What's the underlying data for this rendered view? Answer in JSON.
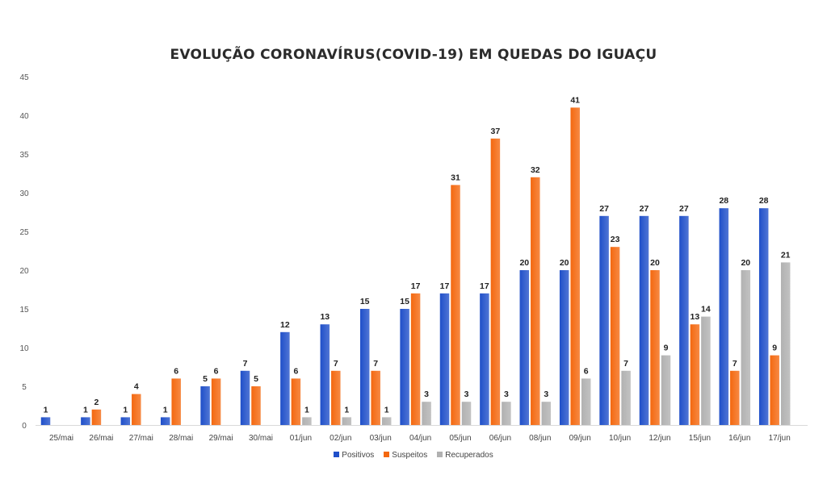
{
  "chart_data": {
    "type": "bar",
    "title": "EVOLUÇÃO CORONAVÍRUS(COVID-19) EM QUEDAS DO IGUAÇU",
    "xlabel": "",
    "ylabel": "",
    "ylim": [
      0,
      45
    ],
    "yticks": [
      0,
      5,
      10,
      15,
      20,
      25,
      30,
      35,
      40,
      45
    ],
    "grid": false,
    "legend": "bottom",
    "categories": [
      "25/mai",
      "26/mai",
      "27/mai",
      "28/mai",
      "29/mai",
      "30/mai",
      "01/jun",
      "02/jun",
      "03/jun",
      "04/jun",
      "05/jun",
      "06/jun",
      "08/jun",
      "09/jun",
      "10/jun",
      "12/jun",
      "15/jun",
      "16/jun",
      "17/jun"
    ],
    "series": [
      {
        "name": "Positivos",
        "color": "#1f4fc9",
        "values": [
          1,
          1,
          1,
          1,
          5,
          7,
          12,
          13,
          15,
          15,
          17,
          17,
          20,
          20,
          27,
          27,
          27,
          28,
          28
        ]
      },
      {
        "name": "Suspeitos",
        "color": "#f4680f",
        "values": [
          null,
          2,
          4,
          6,
          6,
          5,
          6,
          7,
          7,
          17,
          31,
          37,
          32,
          41,
          23,
          20,
          13,
          7,
          9
        ]
      },
      {
        "name": "Recuperados",
        "color": "#b1b1b1",
        "values": [
          null,
          null,
          null,
          null,
          null,
          null,
          1,
          1,
          1,
          3,
          3,
          3,
          3,
          6,
          7,
          9,
          14,
          20,
          21
        ]
      }
    ]
  }
}
